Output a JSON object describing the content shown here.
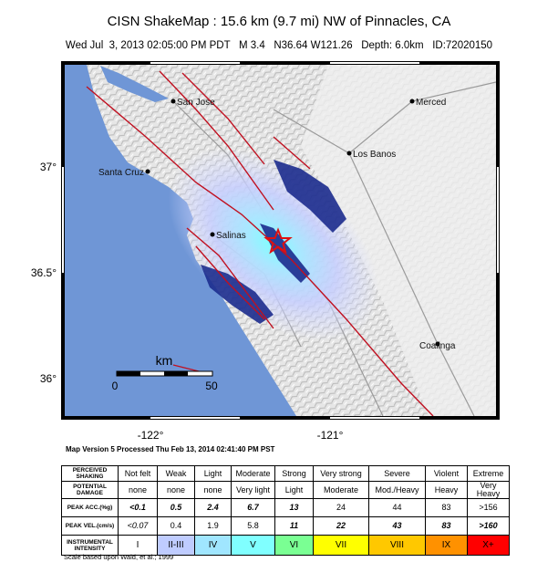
{
  "header": {
    "title": "CISN ShakeMap : 15.6 km (9.7 mi) NW of Pinnacles, CA",
    "subtitle": "Wed Jul  3, 2013 02:05:00 PM PDT   M 3.4   N36.64 W121.26   Depth: 6.0km   ID:72020150"
  },
  "map": {
    "cities": [
      "San Jose",
      "Merced",
      "Los Banos",
      "Santa Cruz",
      "Salinas",
      "Coalinga"
    ],
    "lon_labels": [
      "-122°",
      "-121°"
    ],
    "lat_labels": [
      "37°",
      "36.5°",
      "36°"
    ],
    "scale": {
      "unit": "km",
      "start": "0",
      "end": "50"
    }
  },
  "footer": {
    "version": "Map Version 5 Processed Thu Feb 13, 2014 02:41:40 PM PST"
  },
  "table": {
    "row_headers": [
      "PERCEIVED SHAKING",
      "POTENTIAL DAMAGE",
      "PEAK ACC.(%g)",
      "PEAK VEL.(cm/s)",
      "INSTRUMENTAL INTENSITY"
    ],
    "rows": [
      [
        "Not felt",
        "Weak",
        "Light",
        "Moderate",
        "Strong",
        "Very strong",
        "Severe",
        "Violent",
        "Extreme"
      ],
      [
        "none",
        "none",
        "none",
        "Very light",
        "Light",
        "Moderate",
        "Mod./Heavy",
        "Heavy",
        "Very Heavy"
      ],
      [
        "<0.1",
        "0.5",
        "2.4",
        "6.7",
        "13",
        "24",
        "44",
        "83",
        ">156"
      ],
      [
        "<0.07",
        "0.4",
        "1.9",
        "5.8",
        "11",
        "22",
        "43",
        "83",
        ">160"
      ],
      [
        "I",
        "II-III",
        "IV",
        "V",
        "VI",
        "VII",
        "VIII",
        "IX",
        "X+"
      ]
    ]
  },
  "note": "Scale based upon Wald, et al.; 1999"
}
